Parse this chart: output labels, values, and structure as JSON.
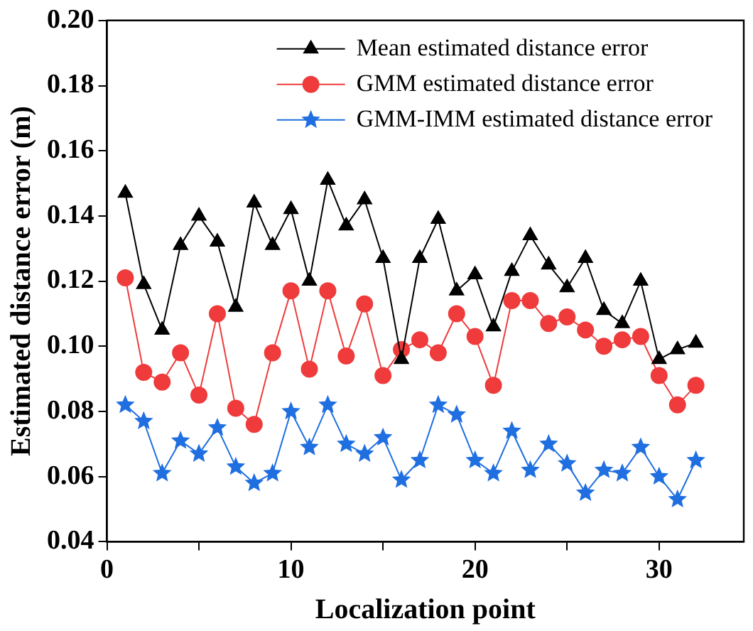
{
  "chart_data": {
    "type": "line",
    "xlabel": "Localization point",
    "ylabel": "Estimated distance error (m)",
    "x": [
      1,
      2,
      3,
      4,
      5,
      6,
      7,
      8,
      9,
      10,
      11,
      12,
      13,
      14,
      15,
      16,
      17,
      18,
      19,
      20,
      21,
      22,
      23,
      24,
      25,
      26,
      27,
      28,
      29,
      30,
      31,
      32
    ],
    "series": [
      {
        "name": "Mean estimated distance error",
        "color": "#000000",
        "marker": "triangle",
        "values": [
          0.147,
          0.119,
          0.105,
          0.131,
          0.14,
          0.132,
          0.112,
          0.144,
          0.131,
          0.142,
          0.12,
          0.151,
          0.137,
          0.145,
          0.127,
          0.096,
          0.127,
          0.139,
          0.117,
          0.122,
          0.106,
          0.123,
          0.134,
          0.125,
          0.118,
          0.127,
          0.111,
          0.107,
          0.12,
          0.096,
          0.099,
          0.101
        ]
      },
      {
        "name": "GMM estimated distance error",
        "color": "#ef3b3b",
        "marker": "circle",
        "values": [
          0.121,
          0.092,
          0.089,
          0.098,
          0.085,
          0.11,
          0.081,
          0.076,
          0.098,
          0.117,
          0.093,
          0.117,
          0.097,
          0.113,
          0.091,
          0.099,
          0.102,
          0.098,
          0.11,
          0.103,
          0.088,
          0.114,
          0.114,
          0.107,
          0.109,
          0.105,
          0.1,
          0.102,
          0.103,
          0.091,
          0.082,
          0.088
        ]
      },
      {
        "name": "GMM-IMM estimated distance error",
        "color": "#1f6fe0",
        "marker": "star",
        "values": [
          0.082,
          0.077,
          0.061,
          0.071,
          0.067,
          0.075,
          0.063,
          0.058,
          0.061,
          0.08,
          0.069,
          0.082,
          0.07,
          0.067,
          0.072,
          0.059,
          0.065,
          0.082,
          0.079,
          0.065,
          0.061,
          0.074,
          0.062,
          0.07,
          0.064,
          0.055,
          0.062,
          0.061,
          0.069,
          0.06,
          0.053,
          0.065
        ]
      }
    ],
    "xlim": [
      0,
      34.6
    ],
    "xticks": [
      0,
      {
        "value": 5,
        "label": null
      },
      10,
      {
        "value": 15,
        "label": null
      },
      20,
      {
        "value": 25,
        "label": null
      },
      30
    ],
    "ylim": [
      0.04,
      0.2
    ],
    "yticks": [
      0.04,
      0.06,
      0.08,
      {
        "value": 0.1,
        "label": "0.10"
      },
      0.12,
      0.14,
      0.16,
      0.18,
      {
        "value": 0.2,
        "label": "0.20"
      }
    ],
    "grid": false,
    "legend": "top right",
    "line_style": "solid"
  }
}
